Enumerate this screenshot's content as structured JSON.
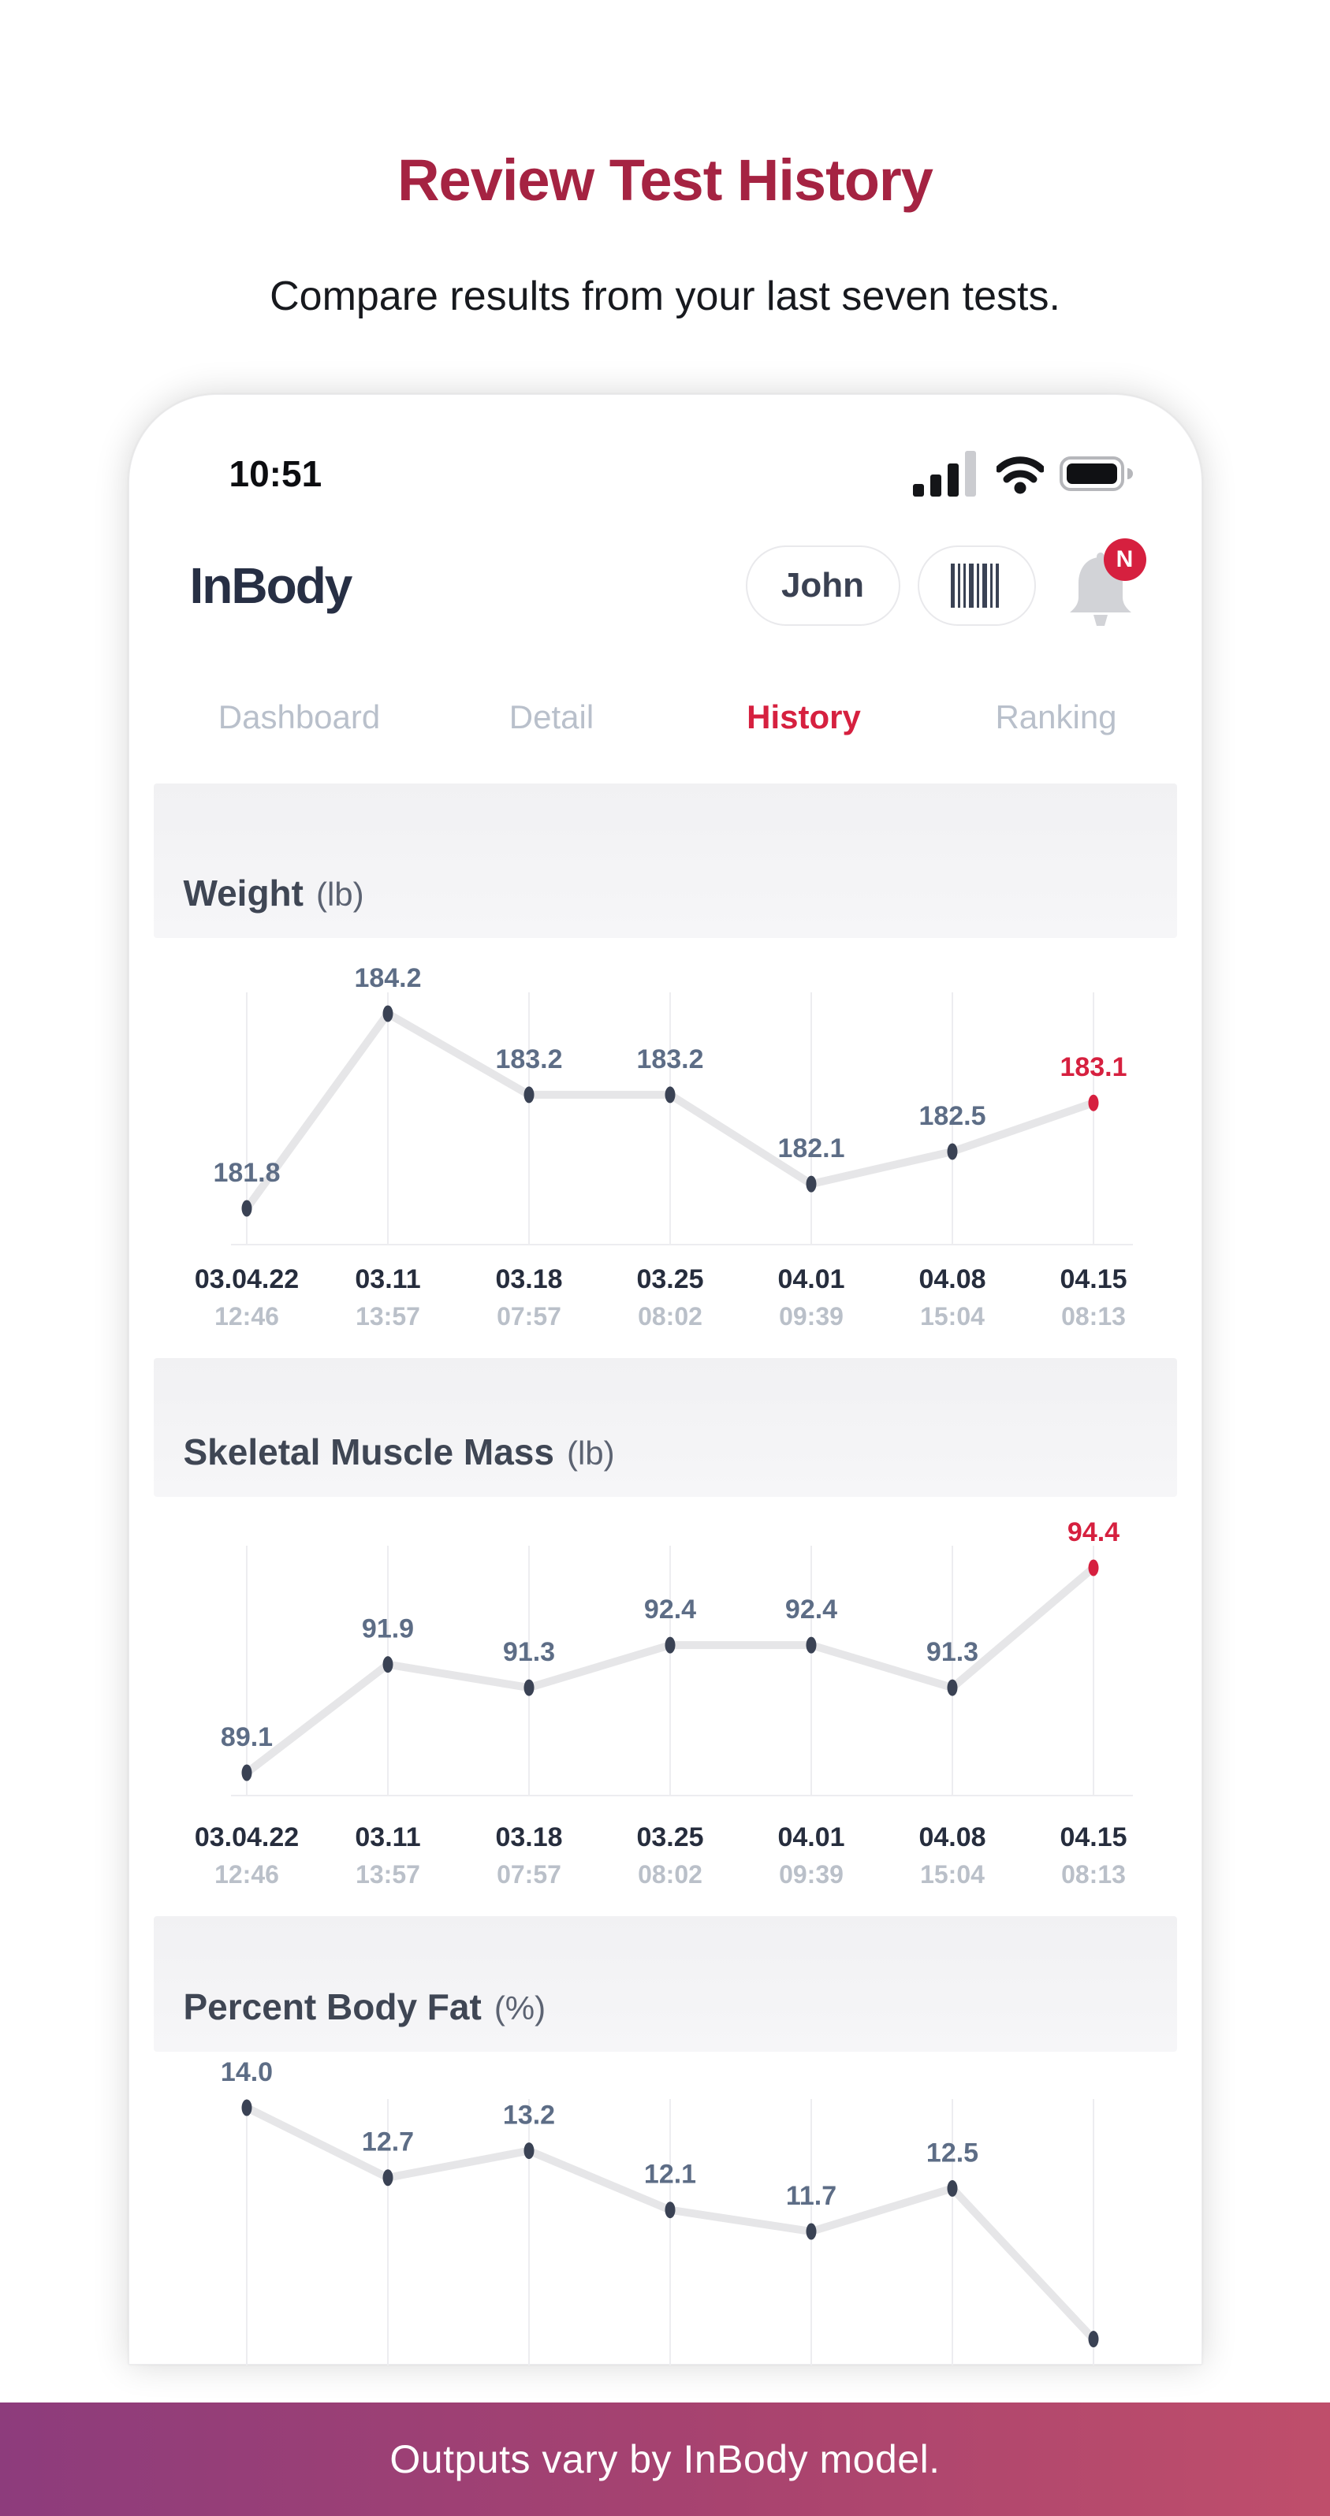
{
  "page": {
    "title": "Review Test History",
    "subtitle": "Compare results from your last seven tests.",
    "footer_note": "Outputs vary by InBody model."
  },
  "colors": {
    "title_red": "#a52342",
    "accent_red": "#d6203f",
    "inactive_tab_gray": "#b9c0cb",
    "value_label_blue_gray": "#5d6d86",
    "point_navy": "#3a4254",
    "line_gray": "#e6e6e8",
    "banner_gradient_left": "#8d3c7c",
    "banner_gradient_right": "#bf4e6b"
  },
  "phone": {
    "status_bar": {
      "time": "10:51",
      "signal_icon": "signal-strength",
      "wifi_icon": "wifi",
      "battery_icon": "battery-full"
    },
    "header": {
      "logo_text": "InBody",
      "profile_button_label": "John",
      "barcode_icon": "barcode",
      "bell_icon": "notification-bell",
      "notification_badge": "N"
    },
    "tabs": [
      {
        "label": "Dashboard",
        "active": false
      },
      {
        "label": "Detail",
        "active": false
      },
      {
        "label": "History",
        "active": true
      },
      {
        "label": "Ranking",
        "active": false
      }
    ]
  },
  "chart_data": [
    {
      "type": "line",
      "title": "Weight",
      "unit": "(lb)",
      "categories": [
        "03.04.22",
        "03.11",
        "03.18",
        "03.25",
        "04.01",
        "04.08",
        "04.15"
      ],
      "times": [
        "12:46",
        "13:57",
        "07:57",
        "08:02",
        "09:39",
        "15:04",
        "08:13"
      ],
      "values": [
        181.8,
        184.2,
        183.2,
        183.2,
        182.1,
        182.5,
        183.1
      ],
      "highlight_last": true,
      "ylim": [
        181.8,
        184.2
      ],
      "grid": "vertical-only",
      "legend": false
    },
    {
      "type": "line",
      "title": "Skeletal Muscle Mass",
      "unit": "(lb)",
      "categories": [
        "03.04.22",
        "03.11",
        "03.18",
        "03.25",
        "04.01",
        "04.08",
        "04.15"
      ],
      "times": [
        "12:46",
        "13:57",
        "07:57",
        "08:02",
        "09:39",
        "15:04",
        "08:13"
      ],
      "values": [
        89.1,
        91.9,
        91.3,
        92.4,
        92.4,
        91.3,
        94.4
      ],
      "highlight_last": true,
      "ylim": [
        89.1,
        94.4
      ],
      "grid": "vertical-only",
      "legend": false
    },
    {
      "type": "line",
      "title": "Percent Body Fat",
      "unit": "(%)",
      "values": [
        14.0,
        12.7,
        13.2,
        12.1,
        11.7,
        12.5
      ],
      "highlight_last": false,
      "seventh_point_hidden": true,
      "clipped_by_banner": true,
      "grid": "vertical-only",
      "legend": false
    }
  ]
}
